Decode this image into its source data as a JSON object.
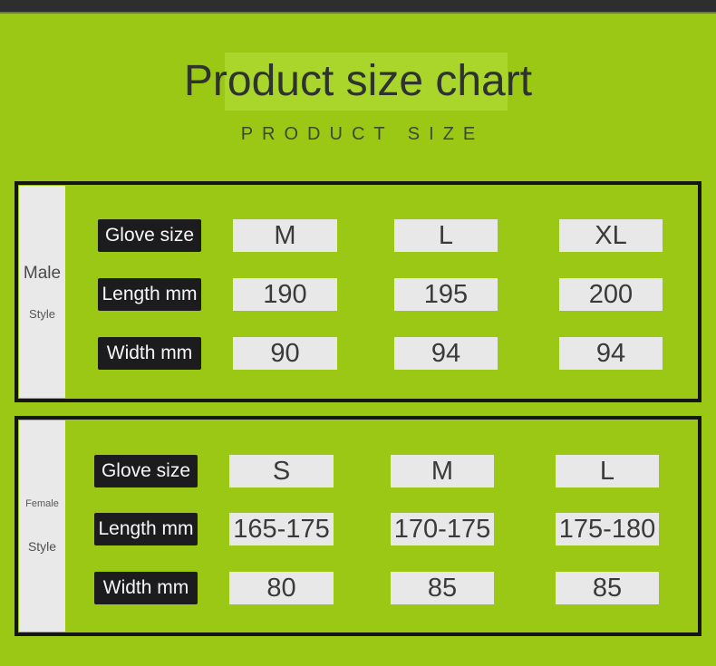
{
  "header": {
    "title": "Product size chart",
    "subtitle": "PRODUCT SIZE"
  },
  "colors": {
    "background_green": "#9ac814",
    "title_highlight_green": "#aad62c",
    "top_bar": "#2e2e2e",
    "table_border": "#151515",
    "label_box": "#1c1c1e",
    "value_box": "#e8e8e8",
    "title_text": "#2f332f"
  },
  "chart_data": [
    {
      "type": "table",
      "group": "Male",
      "group_sub": "Style",
      "rows": [
        {
          "label": "Glove size",
          "values": [
            "M",
            "L",
            "XL"
          ]
        },
        {
          "label": "Length mm",
          "values": [
            "190",
            "195",
            "200"
          ]
        },
        {
          "label": "Width mm",
          "values": [
            "90",
            "94",
            "94"
          ]
        }
      ]
    },
    {
      "type": "table",
      "group": "Female",
      "group_sub": "Style",
      "rows": [
        {
          "label": "Glove size",
          "values": [
            "S",
            "M",
            "L"
          ]
        },
        {
          "label": "Length mm",
          "values": [
            "165-175",
            "170-175",
            "175-180"
          ]
        },
        {
          "label": "Width mm",
          "values": [
            "80",
            "85",
            "85"
          ]
        }
      ]
    }
  ]
}
